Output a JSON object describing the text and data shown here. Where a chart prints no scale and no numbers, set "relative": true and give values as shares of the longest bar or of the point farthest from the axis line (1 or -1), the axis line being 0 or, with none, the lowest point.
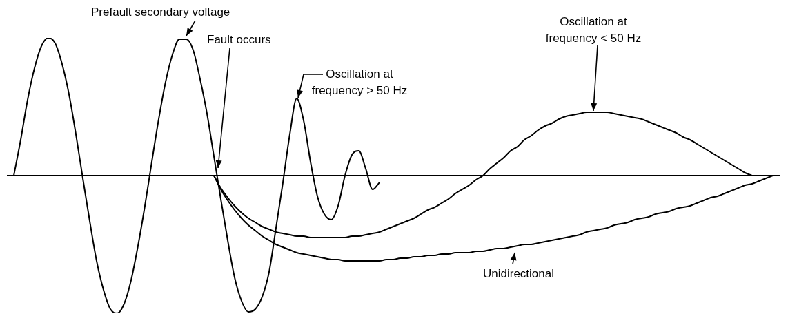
{
  "chart_data": {
    "type": "line",
    "relative": true,
    "marker": "none",
    "line_style": "solid",
    "categories": [
      null,
      null,
      null,
      null,
      null,
      null,
      null,
      null,
      null,
      null,
      null,
      null,
      null,
      null,
      null,
      null,
      null,
      null,
      null,
      null,
      null,
      null,
      null,
      null,
      null,
      null,
      null,
      null,
      null,
      null,
      null,
      null,
      null,
      null,
      null,
      null,
      null,
      null,
      null,
      null,
      null,
      null,
      null,
      null,
      null,
      null,
      null,
      null,
      null,
      null,
      null,
      null,
      null,
      null,
      null,
      null,
      null,
      null,
      null,
      null,
      null,
      null,
      null,
      null,
      null,
      null,
      null,
      null,
      null,
      null,
      null,
      null,
      null,
      null,
      null,
      null,
      null,
      null,
      null,
      null,
      null,
      null,
      null,
      null,
      null,
      null,
      null,
      null,
      null,
      null,
      null,
      null,
      null,
      null,
      null,
      null,
      null,
      null,
      null,
      null,
      null,
      null,
      null,
      null,
      null,
      null,
      null,
      null,
      null,
      null,
      null
    ],
    "series": [
      {
        "color": "#000000",
        "values": [
          0,
          0.26,
          0.55,
          0.78,
          0.94,
          1.0,
          0.96,
          0.81,
          0.59,
          0.3,
          -0.02,
          -0.33,
          -0.62,
          -0.83,
          -0.97,
          -1.0,
          -0.93,
          -0.76,
          -0.51,
          -0.22,
          0.1,
          0.41,
          0.68,
          0.88,
          0.99,
          0.99,
          0.91,
          0.7,
          0.45,
          0.14,
          -0.17,
          -0.47,
          -0.74,
          -0.91,
          -0.99,
          -0.97,
          -0.88,
          -0.7,
          -0.38,
          -0.05,
          0.3,
          0.56,
          0.4,
          0.1,
          -0.15,
          -0.28,
          -0.32,
          -0.22,
          0,
          0.15,
          0.18,
          0.05,
          -0.1,
          -0.05,
          null,
          null,
          null,
          null,
          null,
          null,
          null,
          null,
          null,
          null,
          null,
          null,
          null,
          null,
          null,
          null,
          null,
          null,
          null,
          null,
          null,
          null,
          null,
          null,
          null,
          null,
          null,
          null,
          null,
          null,
          null,
          null,
          null,
          null,
          null,
          null,
          null,
          null,
          null,
          null,
          null,
          null,
          null,
          null,
          null,
          null,
          null,
          null,
          null,
          null,
          null,
          null,
          null,
          null,
          null,
          null,
          null
        ]
      },
      {
        "color": "#000000",
        "values": [
          null,
          null,
          null,
          null,
          null,
          null,
          null,
          null,
          null,
          null,
          null,
          null,
          null,
          null,
          null,
          null,
          null,
          null,
          null,
          null,
          null,
          null,
          null,
          null,
          null,
          null,
          null,
          null,
          null,
          0,
          -0.09,
          -0.16,
          -0.22,
          -0.27,
          -0.31,
          -0.34,
          -0.37,
          -0.39,
          -0.41,
          -0.42,
          -0.43,
          -0.44,
          -0.44,
          -0.45,
          -0.45,
          -0.45,
          -0.45,
          -0.45,
          -0.45,
          -0.44,
          -0.44,
          -0.43,
          -0.42,
          -0.41,
          -0.39,
          -0.37,
          -0.35,
          -0.33,
          -0.31,
          -0.28,
          -0.25,
          -0.23,
          -0.2,
          -0.17,
          -0.13,
          -0.1,
          -0.07,
          -0.03,
          0,
          0.05,
          0.09,
          0.13,
          0.18,
          0.21,
          0.26,
          0.29,
          0.33,
          0.36,
          0.38,
          0.41,
          0.43,
          0.44,
          0.45,
          0.46,
          0.46,
          0.46,
          0.46,
          0.45,
          0.44,
          0.43,
          0.42,
          0.41,
          0.39,
          0.37,
          0.35,
          0.33,
          0.31,
          0.28,
          0.26,
          0.23,
          0.2,
          0.17,
          0.14,
          0.11,
          0.08,
          0.05,
          0.02,
          0,
          null,
          null,
          null
        ]
      },
      {
        "color": "#000000",
        "values": [
          null,
          null,
          null,
          null,
          null,
          null,
          null,
          null,
          null,
          null,
          null,
          null,
          null,
          null,
          null,
          null,
          null,
          null,
          null,
          null,
          null,
          null,
          null,
          null,
          null,
          null,
          null,
          null,
          null,
          0,
          -0.1,
          -0.18,
          -0.25,
          -0.31,
          -0.36,
          -0.4,
          -0.44,
          -0.47,
          -0.5,
          -0.52,
          -0.54,
          -0.56,
          -0.57,
          -0.58,
          -0.59,
          -0.6,
          -0.61,
          -0.61,
          -0.62,
          -0.62,
          -0.62,
          -0.62,
          -0.62,
          -0.62,
          -0.61,
          -0.61,
          -0.6,
          -0.6,
          -0.59,
          -0.59,
          -0.58,
          -0.58,
          -0.57,
          -0.57,
          -0.56,
          -0.56,
          -0.56,
          -0.55,
          -0.55,
          -0.54,
          -0.53,
          -0.53,
          -0.52,
          -0.51,
          -0.5,
          -0.5,
          -0.49,
          -0.48,
          -0.47,
          -0.46,
          -0.45,
          -0.44,
          -0.43,
          -0.41,
          -0.4,
          -0.39,
          -0.38,
          -0.36,
          -0.35,
          -0.34,
          -0.32,
          -0.31,
          -0.3,
          -0.28,
          -0.27,
          -0.26,
          -0.24,
          -0.23,
          -0.22,
          -0.2,
          -0.18,
          -0.16,
          -0.15,
          -0.13,
          -0.11,
          -0.09,
          -0.07,
          -0.06,
          -0.04,
          -0.02,
          0
        ]
      }
    ],
    "annotations": [
      "Prefault secondary voltage",
      "Fault occurs",
      "Oscillation at frequency > 50 Hz",
      "Oscillation at frequency < 50 Hz",
      "Unidirectional"
    ]
  }
}
